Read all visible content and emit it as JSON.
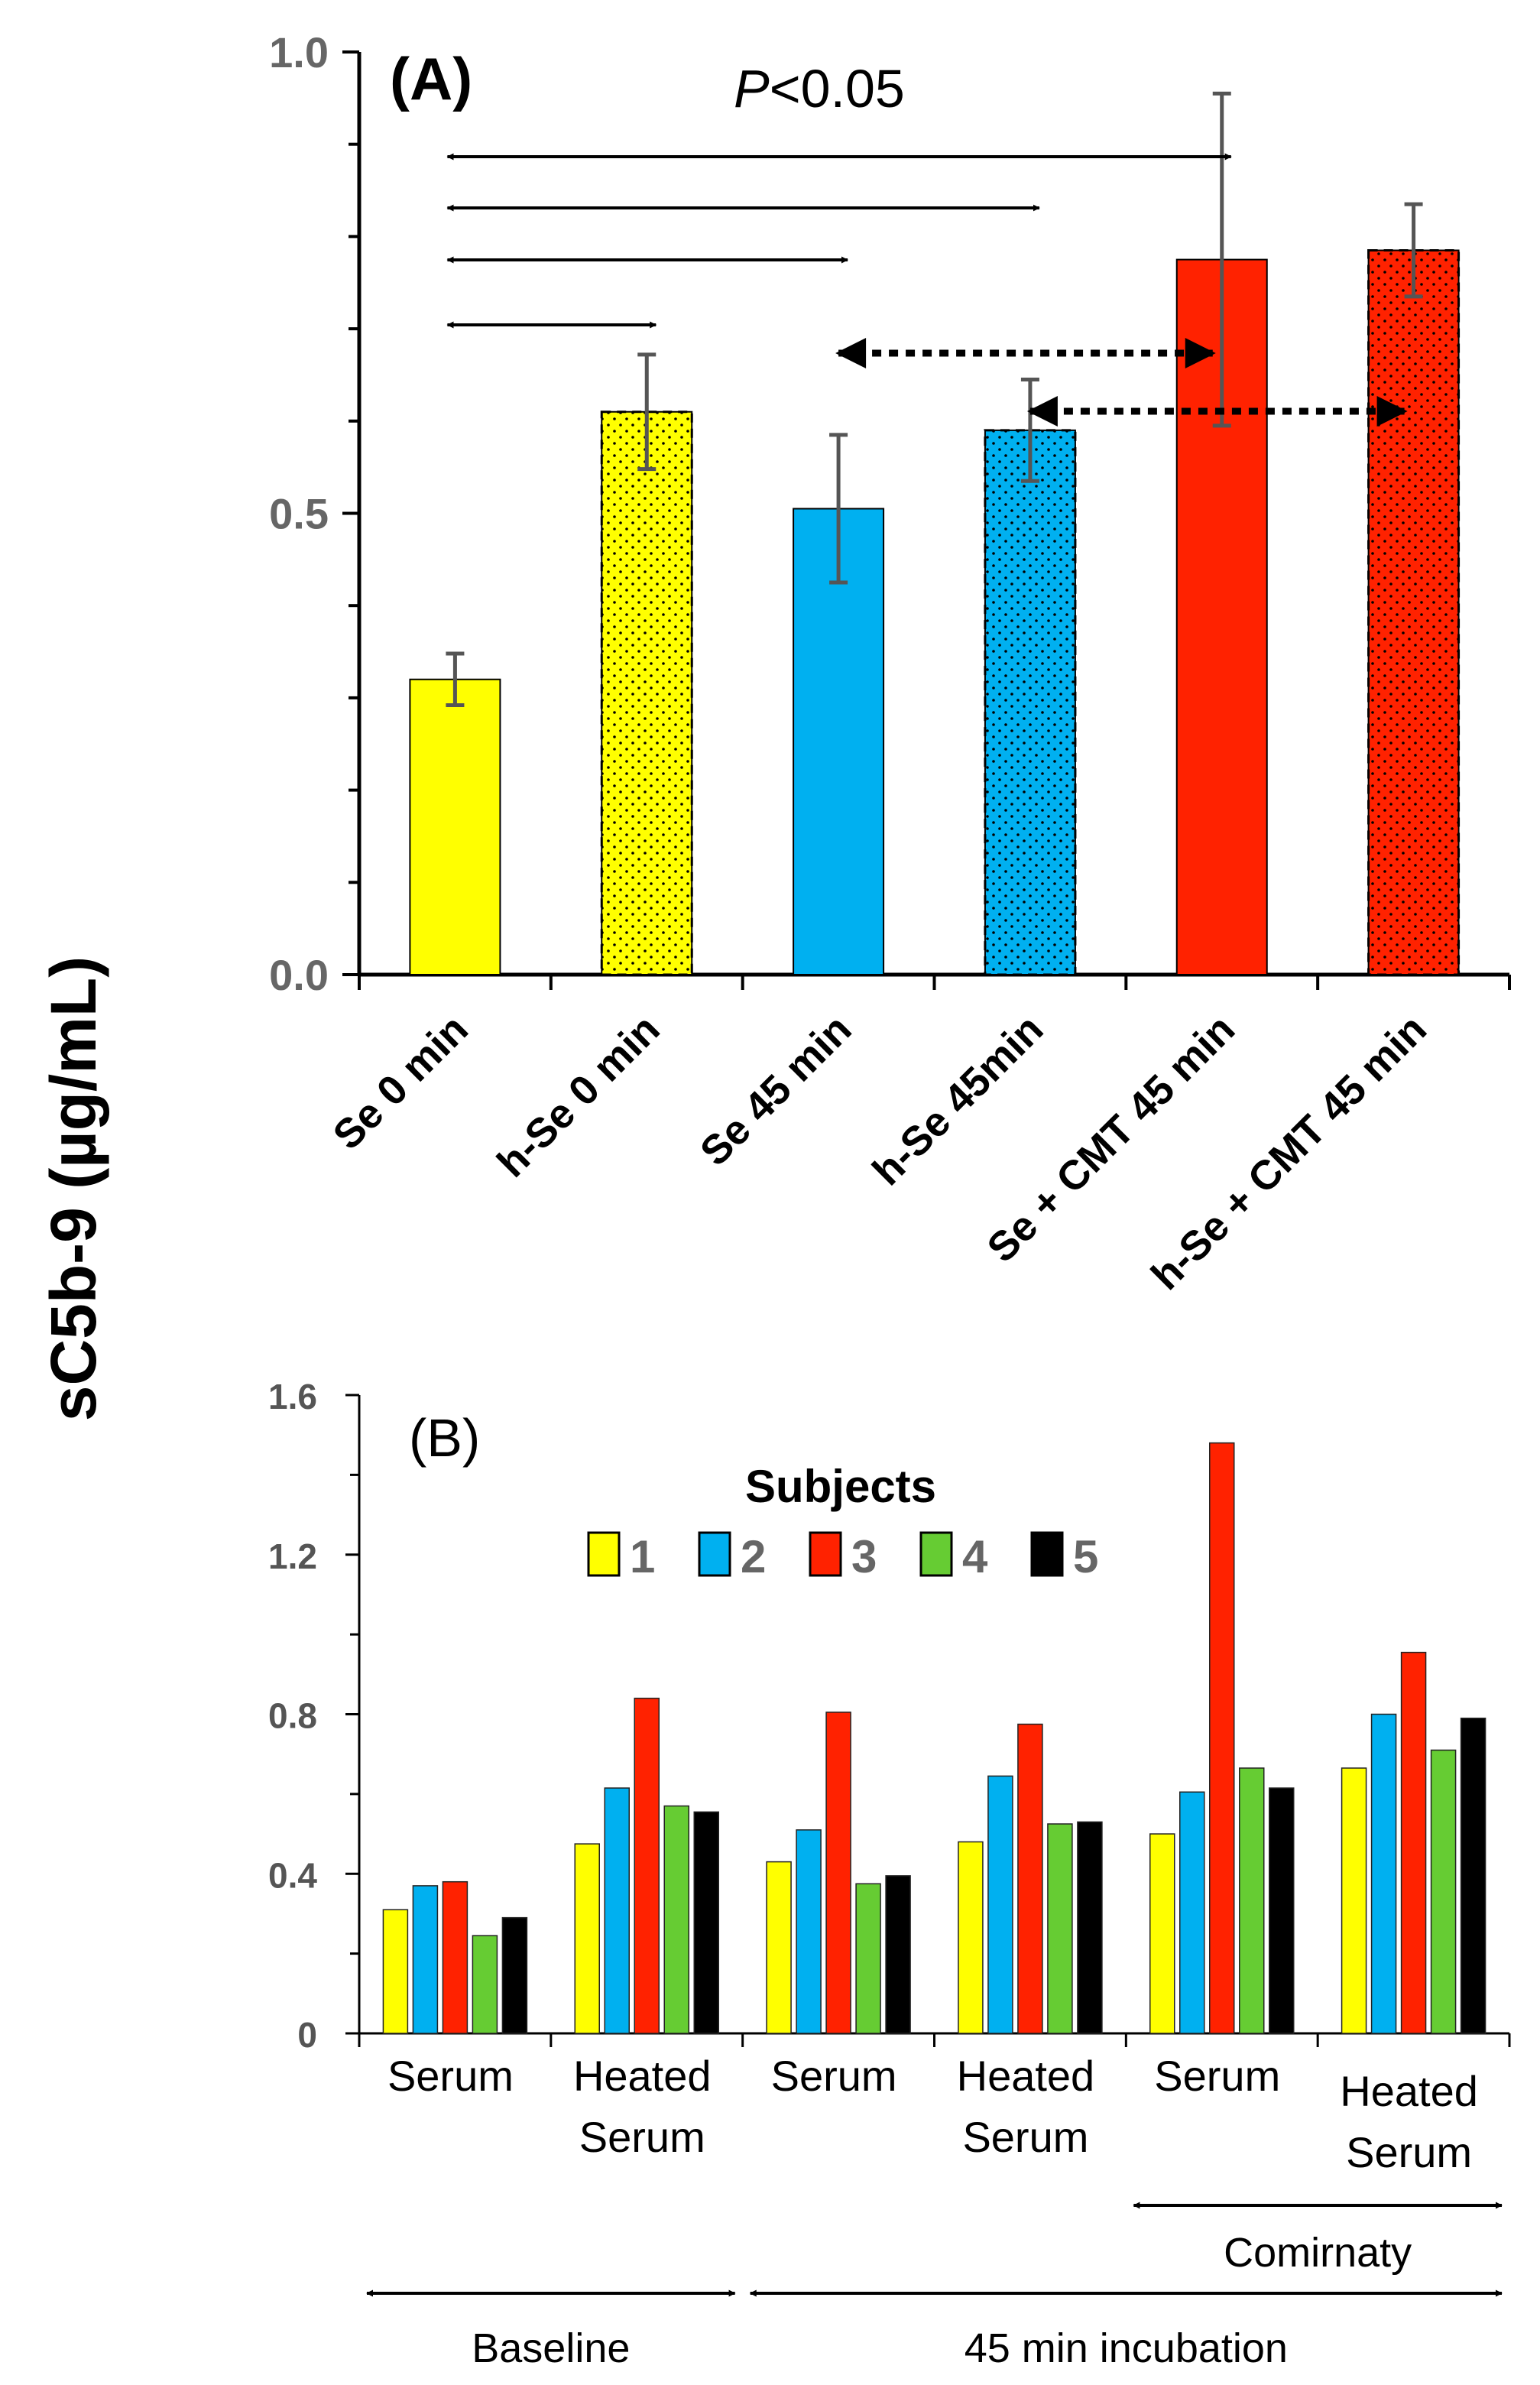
{
  "figure": {
    "y_axis_label": "sC5b-9 (µg/mL)"
  },
  "chart_data": [
    {
      "panel": "(A)",
      "type": "bar",
      "title": "",
      "xlabel": "",
      "ylabel": "sC5b-9 (µg/mL)",
      "ylim": [
        0,
        1.0
      ],
      "yticks": [
        "0.0",
        "0.5",
        "1.0"
      ],
      "grid": false,
      "significance_label": "P<0.05",
      "significance_prefix": "P",
      "significance_suffix": "<0.05",
      "categories": [
        "Se 0 min",
        "h-Se 0 min",
        "Se 45 min",
        "h-Se 45min",
        "Se + CMT 45 min",
        "h-Se + CMT 45 min"
      ],
      "values": [
        0.32,
        0.61,
        0.505,
        0.59,
        0.775,
        0.785
      ],
      "errors": [
        0.028,
        0.062,
        0.08,
        0.055,
        0.18,
        0.05
      ],
      "colors": [
        "#ffff00",
        "#ffff00",
        "#00b0f0",
        "#00b0f0",
        "#ff2200",
        "#ff2200"
      ],
      "dotted": [
        false,
        true,
        false,
        true,
        false,
        true
      ],
      "comparisons_solid": [
        {
          "from": 0,
          "to": 4
        },
        {
          "from": 0,
          "to": 3
        },
        {
          "from": 0,
          "to": 2
        },
        {
          "from": 0,
          "to": 1
        }
      ],
      "comparisons_dotted": [
        {
          "from": 2,
          "to": 4
        },
        {
          "from": 3,
          "to": 5
        }
      ]
    },
    {
      "panel": "(B)",
      "type": "bar",
      "title": "",
      "xlabel": "",
      "ylabel": "sC5b-9 (µg/mL)",
      "ylim": [
        0,
        1.6
      ],
      "yticks": [
        "0",
        "0.4",
        "0.8",
        "1.2",
        "1.6"
      ],
      "grid": false,
      "legend_title": "Subjects",
      "legend_position": "top-center",
      "categories": [
        [
          "Serum"
        ],
        [
          "Heated",
          "Serum"
        ],
        [
          "Serum"
        ],
        [
          "Heated",
          "Serum"
        ],
        [
          "Serum"
        ],
        [
          "Heated",
          "Serum"
        ]
      ],
      "series": [
        {
          "name": "1",
          "color": "#ffff00",
          "values": [
            0.31,
            0.475,
            0.43,
            0.48,
            0.5,
            0.665
          ]
        },
        {
          "name": "2",
          "color": "#00b0f0",
          "values": [
            0.37,
            0.615,
            0.51,
            0.645,
            0.605,
            0.8
          ]
        },
        {
          "name": "3",
          "color": "#ff2200",
          "values": [
            0.38,
            0.84,
            0.805,
            0.775,
            1.48,
            0.955
          ]
        },
        {
          "name": "4",
          "color": "#66cc33",
          "values": [
            0.245,
            0.57,
            0.375,
            0.525,
            0.665,
            0.71
          ]
        },
        {
          "name": "5",
          "color": "#000000",
          "values": [
            0.29,
            0.555,
            0.395,
            0.53,
            0.615,
            0.79
          ]
        }
      ],
      "group_annotations": [
        {
          "label": "Comirnaty",
          "from_category": 4,
          "to_category": 5
        },
        {
          "label": "Baseline",
          "from_category": 0,
          "to_category": 1
        },
        {
          "label": "45 min incubation",
          "from_category": 2,
          "to_category": 5
        }
      ]
    }
  ]
}
